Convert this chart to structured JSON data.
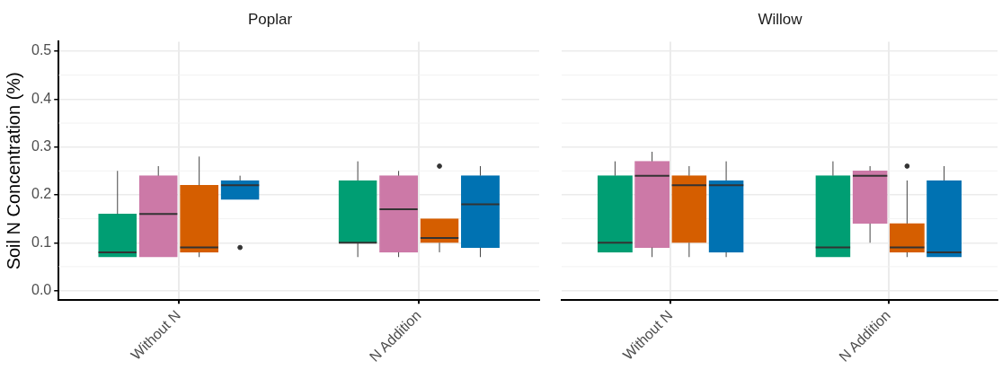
{
  "chart_data": [
    {
      "type": "box",
      "title": "Poplar",
      "ylabel": "Soil N Concentration (%)",
      "categories": [
        "Without N",
        "N Addition"
      ],
      "ylim": [
        -0.02,
        0.52
      ],
      "yticks": [
        {
          "value": 0,
          "label": "0.0"
        },
        0.1,
        0.2,
        0.3,
        0.4,
        0.5
      ],
      "grid": true,
      "legend": false,
      "series": [
        {
          "color": "#009e73",
          "boxes": [
            {
              "low": 0.07,
              "q1": 0.07,
              "median": 0.08,
              "q3": 0.16,
              "high": 0.25
            },
            {
              "low": 0.07,
              "q1": 0.1,
              "median": 0.1,
              "q3": 0.23,
              "high": 0.27
            }
          ]
        },
        {
          "color": "#cc79a7",
          "boxes": [
            {
              "low": 0.07,
              "q1": 0.07,
              "median": 0.16,
              "q3": 0.24,
              "high": 0.26
            },
            {
              "low": 0.07,
              "q1": 0.08,
              "median": 0.17,
              "q3": 0.24,
              "high": 0.25
            }
          ]
        },
        {
          "color": "#d55e00",
          "boxes": [
            {
              "low": 0.07,
              "q1": 0.08,
              "median": 0.09,
              "q3": 0.22,
              "high": 0.28
            },
            {
              "low": 0.08,
              "q1": 0.1,
              "median": 0.11,
              "q3": 0.15,
              "high": 0.15,
              "outliers": [
                0.26
              ]
            }
          ]
        },
        {
          "color": "#0072b2",
          "boxes": [
            {
              "low": 0.19,
              "q1": 0.19,
              "median": 0.22,
              "q3": 0.23,
              "high": 0.24,
              "outliers": [
                0.09
              ]
            },
            {
              "low": 0.07,
              "q1": 0.09,
              "median": 0.18,
              "q3": 0.24,
              "high": 0.26
            }
          ]
        }
      ]
    },
    {
      "type": "box",
      "title": "Willow",
      "categories": [
        "Without N",
        "N Addition"
      ],
      "ylim": [
        -0.02,
        0.52
      ],
      "yticks": [
        0,
        0.1,
        0.2,
        0.3,
        0.4,
        0.5
      ],
      "grid": true,
      "legend": false,
      "tick_labels": "x",
      "series": [
        {
          "color": "#009e73",
          "boxes": [
            {
              "low": 0.08,
              "q1": 0.08,
              "median": 0.1,
              "q3": 0.24,
              "high": 0.27
            },
            {
              "low": 0.07,
              "q1": 0.07,
              "median": 0.09,
              "q3": 0.24,
              "high": 0.27
            }
          ]
        },
        {
          "color": "#cc79a7",
          "boxes": [
            {
              "low": 0.07,
              "q1": 0.09,
              "median": 0.24,
              "q3": 0.27,
              "high": 0.29
            },
            {
              "low": 0.1,
              "q1": 0.14,
              "median": 0.24,
              "q3": 0.25,
              "high": 0.26
            }
          ]
        },
        {
          "color": "#d55e00",
          "boxes": [
            {
              "low": 0.07,
              "q1": 0.1,
              "median": 0.22,
              "q3": 0.24,
              "high": 0.26
            },
            {
              "low": 0.07,
              "q1": 0.08,
              "median": 0.09,
              "q3": 0.14,
              "high": 0.23,
              "outliers": [
                0.26
              ]
            }
          ]
        },
        {
          "color": "#0072b2",
          "boxes": [
            {
              "low": 0.07,
              "q1": 0.08,
              "median": 0.22,
              "q3": 0.23,
              "high": 0.27
            },
            {
              "low": 0.07,
              "q1": 0.07,
              "median": 0.08,
              "q3": 0.23,
              "high": 0.26
            }
          ]
        }
      ]
    }
  ]
}
